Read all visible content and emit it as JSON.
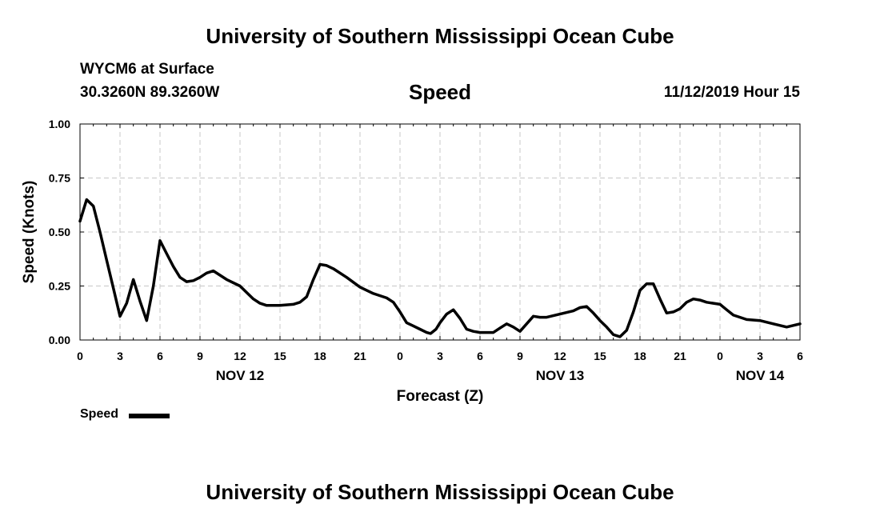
{
  "header": {
    "title": "University of Southern Mississippi Ocean Cube",
    "station": "WYCM6 at Surface",
    "coords": "30.3260N 89.3260W",
    "variable": "Speed",
    "timestamp": "11/12/2019 Hour 15"
  },
  "footer": {
    "title": "University of Southern Mississippi Ocean Cube"
  },
  "legend": {
    "label": "Speed",
    "color": "#000000"
  },
  "chart_data": {
    "type": "line",
    "xlabel": "Forecast (Z)",
    "ylabel": "Speed (Knots)",
    "xlim": [
      0,
      54
    ],
    "ylim": [
      0,
      1
    ],
    "yticks": [
      "0.00",
      "0.25",
      "0.50",
      "0.75",
      "1.00"
    ],
    "xtick_labels": [
      "0",
      "3",
      "6",
      "9",
      "12",
      "15",
      "18",
      "21",
      "0",
      "3",
      "6",
      "9",
      "12",
      "15",
      "18",
      "21",
      "0",
      "3",
      "6"
    ],
    "date_labels": [
      {
        "text": "NOV 12",
        "x": 12
      },
      {
        "text": "NOV 13",
        "x": 36
      },
      {
        "text": "NOV 14",
        "x": 51
      }
    ],
    "grid": true,
    "grid_style": "dashed",
    "series": [
      {
        "name": "Speed",
        "color": "#000000",
        "points": [
          [
            0,
            0.55
          ],
          [
            0.5,
            0.65
          ],
          [
            1,
            0.62
          ],
          [
            1.5,
            0.5
          ],
          [
            2,
            0.37
          ],
          [
            2.5,
            0.24
          ],
          [
            3,
            0.11
          ],
          [
            3.5,
            0.17
          ],
          [
            4,
            0.28
          ],
          [
            4.5,
            0.18
          ],
          [
            5,
            0.09
          ],
          [
            5.5,
            0.25
          ],
          [
            6,
            0.46
          ],
          [
            6.5,
            0.4
          ],
          [
            7,
            0.34
          ],
          [
            7.5,
            0.29
          ],
          [
            8,
            0.27
          ],
          [
            8.5,
            0.275
          ],
          [
            9,
            0.29
          ],
          [
            9.5,
            0.31
          ],
          [
            10,
            0.32
          ],
          [
            10.5,
            0.3
          ],
          [
            11,
            0.28
          ],
          [
            12,
            0.25
          ],
          [
            12.5,
            0.22
          ],
          [
            13,
            0.19
          ],
          [
            13.5,
            0.17
          ],
          [
            14,
            0.16
          ],
          [
            15,
            0.16
          ],
          [
            16,
            0.165
          ],
          [
            16.5,
            0.175
          ],
          [
            17,
            0.2
          ],
          [
            17.5,
            0.28
          ],
          [
            18,
            0.35
          ],
          [
            18.5,
            0.345
          ],
          [
            19,
            0.33
          ],
          [
            20,
            0.29
          ],
          [
            21,
            0.245
          ],
          [
            22,
            0.215
          ],
          [
            23,
            0.195
          ],
          [
            23.5,
            0.175
          ],
          [
            24,
            0.13
          ],
          [
            24.5,
            0.08
          ],
          [
            25,
            0.065
          ],
          [
            25.5,
            0.05
          ],
          [
            26,
            0.035
          ],
          [
            26.3,
            0.03
          ],
          [
            26.7,
            0.05
          ],
          [
            27,
            0.08
          ],
          [
            27.5,
            0.12
          ],
          [
            28,
            0.14
          ],
          [
            28.5,
            0.1
          ],
          [
            29,
            0.05
          ],
          [
            29.5,
            0.04
          ],
          [
            30,
            0.035
          ],
          [
            31,
            0.035
          ],
          [
            31.5,
            0.055
          ],
          [
            32,
            0.075
          ],
          [
            32.5,
            0.06
          ],
          [
            33,
            0.04
          ],
          [
            33.5,
            0.075
          ],
          [
            34,
            0.11
          ],
          [
            34.5,
            0.105
          ],
          [
            35,
            0.105
          ],
          [
            36,
            0.12
          ],
          [
            37,
            0.135
          ],
          [
            37.5,
            0.15
          ],
          [
            38,
            0.155
          ],
          [
            38.5,
            0.125
          ],
          [
            39,
            0.09
          ],
          [
            39.5,
            0.06
          ],
          [
            40,
            0.025
          ],
          [
            40.5,
            0.015
          ],
          [
            41,
            0.045
          ],
          [
            41.5,
            0.13
          ],
          [
            42,
            0.23
          ],
          [
            42.5,
            0.26
          ],
          [
            43,
            0.26
          ],
          [
            43.5,
            0.19
          ],
          [
            44,
            0.125
          ],
          [
            44.5,
            0.13
          ],
          [
            45,
            0.145
          ],
          [
            45.5,
            0.175
          ],
          [
            46,
            0.19
          ],
          [
            46.5,
            0.185
          ],
          [
            47,
            0.175
          ],
          [
            48,
            0.165
          ],
          [
            48.5,
            0.14
          ],
          [
            49,
            0.115
          ],
          [
            50,
            0.095
          ],
          [
            51,
            0.09
          ],
          [
            52,
            0.075
          ],
          [
            53,
            0.06
          ],
          [
            54,
            0.075
          ]
        ]
      }
    ]
  }
}
